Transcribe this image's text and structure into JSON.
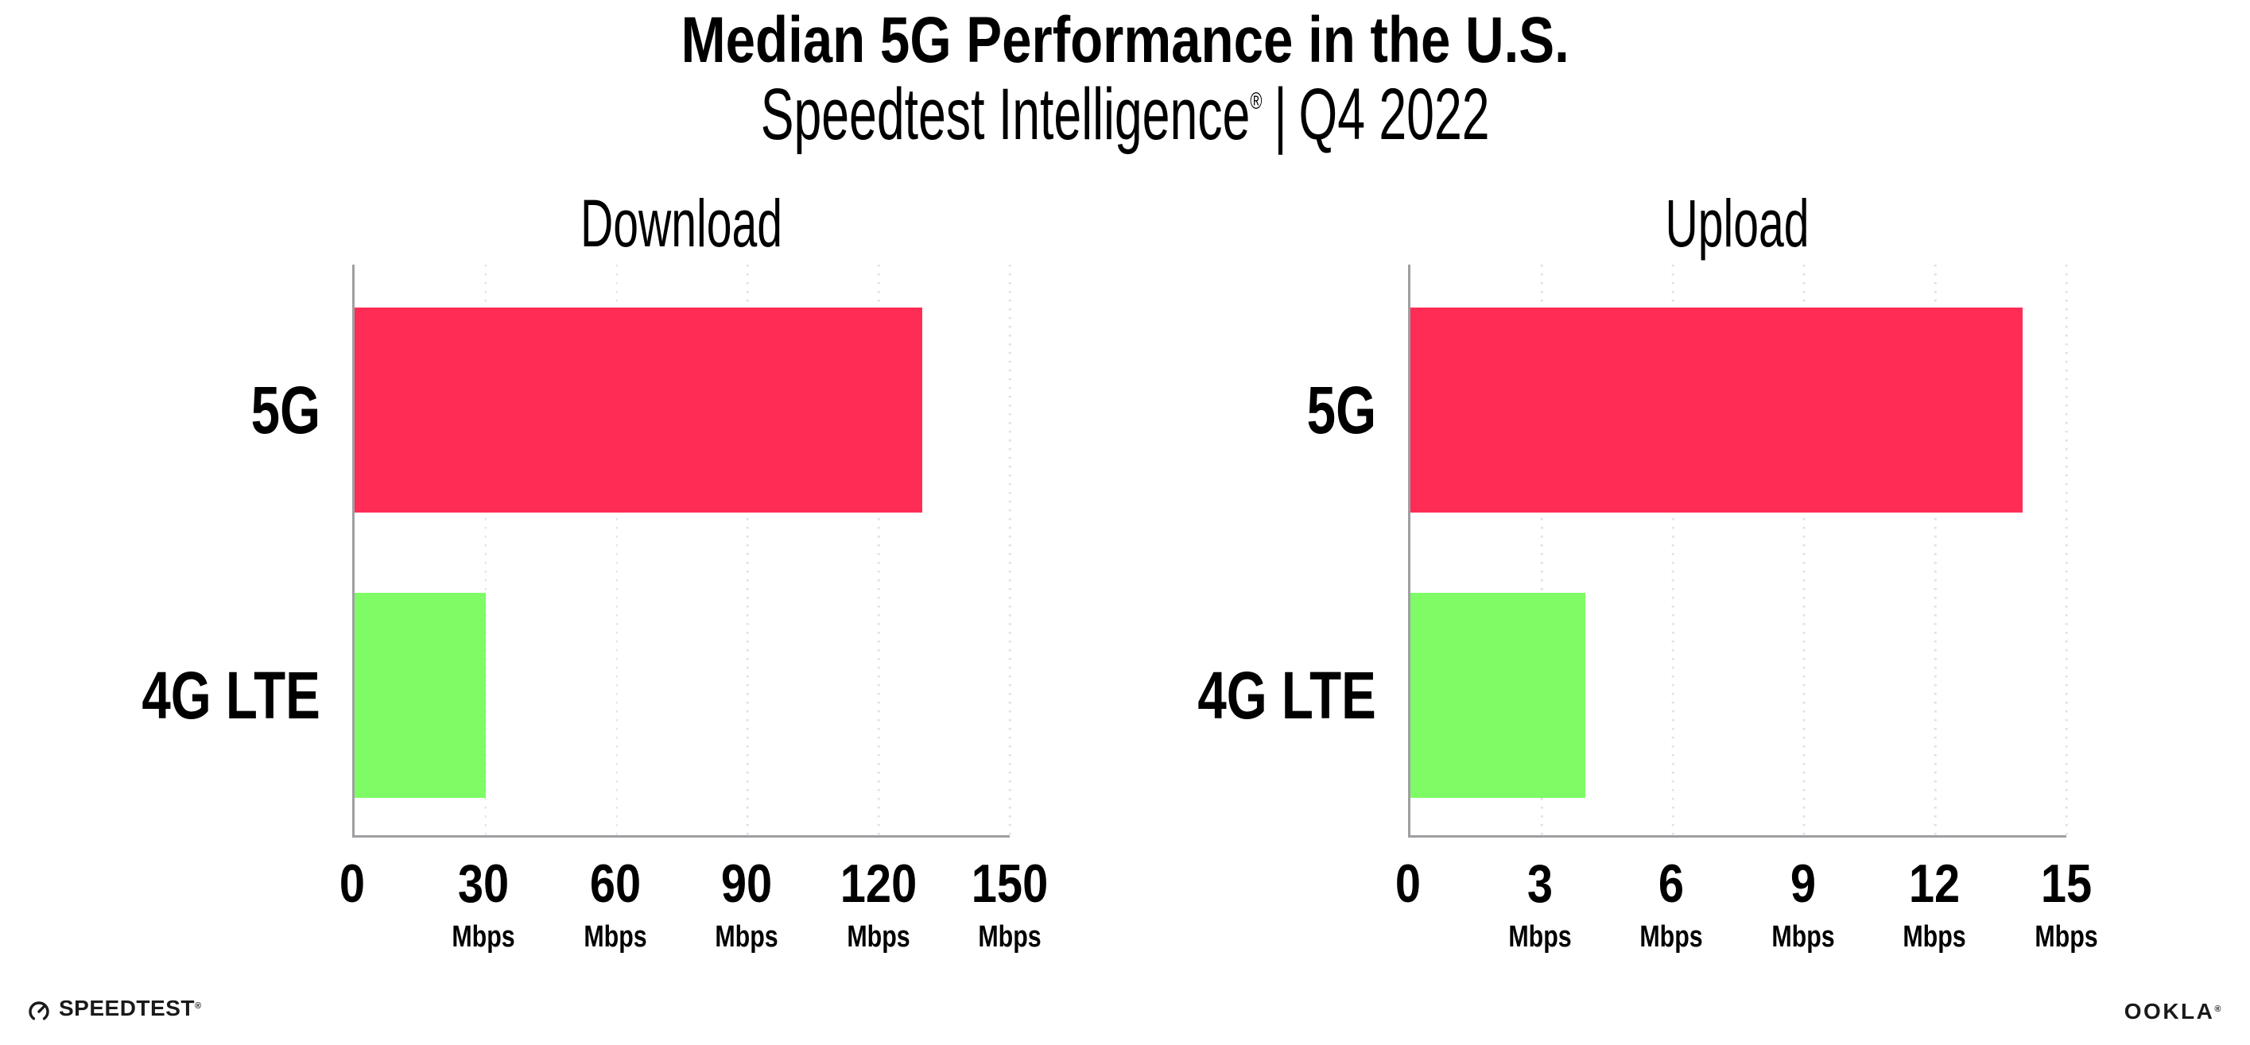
{
  "header": {
    "title": "Median 5G Performance in the U.S.",
    "subtitle_brand": "Speedtest Intelligence",
    "subtitle_reg": "®",
    "subtitle_divider": "|",
    "subtitle_period": "Q4 2022"
  },
  "chart_data": [
    {
      "type": "bar",
      "orientation": "horizontal",
      "title": "Download",
      "categories": [
        "5G",
        "4G LTE"
      ],
      "values": [
        130,
        30
      ],
      "value_unit": "Mbps",
      "xlim": [
        0,
        150
      ],
      "xticks": [
        0,
        30,
        60,
        90,
        120,
        150
      ],
      "tick_unit_label": "Mbps",
      "bar_colors": [
        "#FF2D55",
        "#7EFB65"
      ],
      "grid": "dotted-vertical-at-ticks",
      "legend": "none"
    },
    {
      "type": "bar",
      "orientation": "horizontal",
      "title": "Upload",
      "categories": [
        "5G",
        "4G LTE"
      ],
      "values": [
        14,
        4
      ],
      "value_unit": "Mbps",
      "xlim": [
        0,
        15
      ],
      "xticks": [
        0,
        3,
        6,
        9,
        12,
        15
      ],
      "tick_unit_label": "Mbps",
      "bar_colors": [
        "#FF2D55",
        "#7EFB65"
      ],
      "grid": "dotted-vertical-at-ticks",
      "legend": "none"
    }
  ],
  "footer": {
    "speedtest_label": "SPEEDTEST",
    "speedtest_mark": "®",
    "ookla_label": "OOKLA",
    "ookla_mark": "®"
  },
  "colors": {
    "bar_5g": "#FF2D55",
    "bar_4g_lte": "#7EFB65",
    "axis": "#9f9fa3",
    "gridline": "#dfe0ec",
    "text": "#000000"
  }
}
